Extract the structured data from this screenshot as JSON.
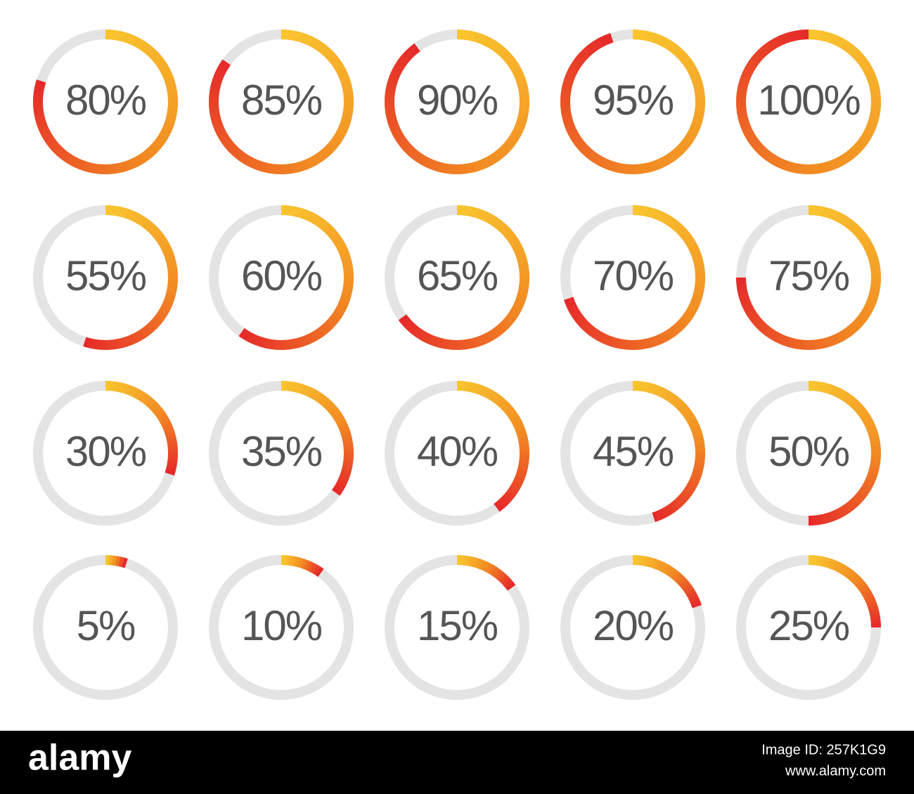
{
  "chart_data": {
    "type": "progress",
    "values": [
      80,
      85,
      90,
      95,
      100,
      55,
      60,
      65,
      70,
      75,
      30,
      35,
      40,
      45,
      50,
      5,
      10,
      15,
      20,
      25
    ],
    "value_labels": [
      "80%",
      "85%",
      "90%",
      "95%",
      "100%",
      "55%",
      "60%",
      "65%",
      "70%",
      "75%",
      "30%",
      "35%",
      "40%",
      "45%",
      "50%",
      "5%",
      "10%",
      "15%",
      "20%",
      "25%"
    ],
    "vlim": [
      0,
      100
    ],
    "colors": [
      "#f9c52e",
      "#f28a22",
      "#e62a2a"
    ],
    "track_color": "#e4e4e4"
  },
  "watermark": {
    "brand": "alamy",
    "image_id": "Image ID: 257K1G9",
    "url": "www.alamy.com"
  }
}
